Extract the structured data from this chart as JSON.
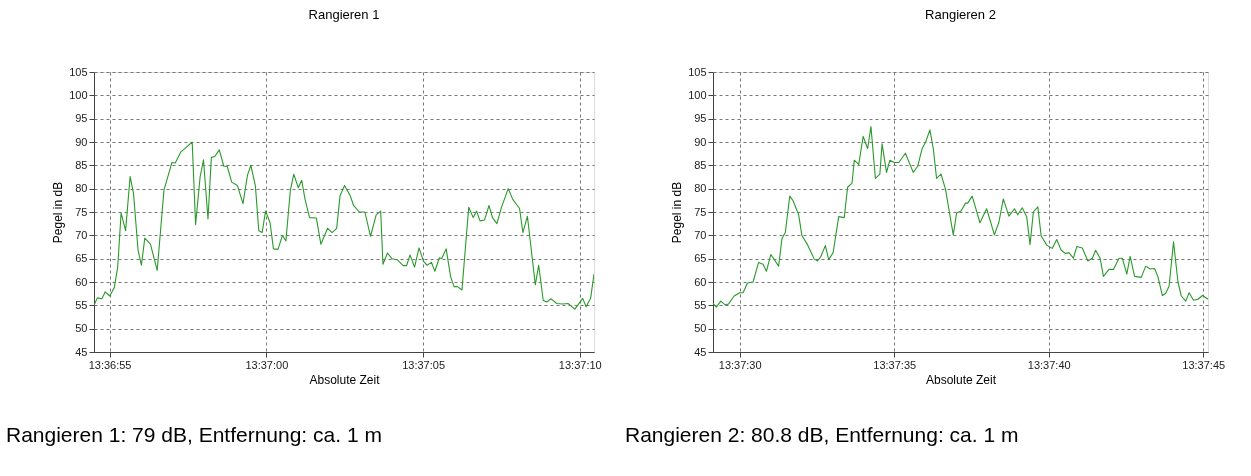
{
  "chart_data": [
    {
      "type": "line",
      "title": "Rangieren 1",
      "xlabel": "Absolute Zeit",
      "ylabel": "Pegel in dB",
      "annotations": [
        "Rangieren 1: 79 dB, Entfernung: ca. 1 m"
      ],
      "xlim": [
        13.61514,
        13.61957
      ],
      "ylim": [
        45,
        105
      ],
      "xticks": [
        {
          "value": 13.615278,
          "label": "13:36:55"
        },
        {
          "value": 13.616667,
          "label": "13:37:00"
        },
        {
          "value": 13.618056,
          "label": "13:37:05"
        },
        {
          "value": 13.619444,
          "label": "13:37:10"
        }
      ],
      "yticks": [
        45,
        50,
        55,
        60,
        65,
        70,
        75,
        80,
        85,
        90,
        95,
        100,
        105
      ],
      "grid": true,
      "marker": "none",
      "line_style": "solid",
      "series": [
        {
          "color": "#2a9a2a",
          "x": [
            13.61514,
            13.61517,
            13.61521,
            13.61524,
            13.61528,
            13.61532,
            13.61535,
            13.61538,
            13.61542,
            13.61546,
            13.61549,
            13.61553,
            13.61556,
            13.61559,
            13.61564,
            13.6157,
            13.61576,
            13.61583,
            13.61586,
            13.61591,
            13.61596,
            13.61601,
            13.61604,
            13.61608,
            13.61611,
            13.61615,
            13.61618,
            13.61621,
            13.61625,
            13.61629,
            13.61632,
            13.61636,
            13.61641,
            13.61646,
            13.6165,
            13.61653,
            13.61657,
            13.6166,
            13.61663,
            13.61666,
            13.6167,
            13.61673,
            13.61677,
            13.61681,
            13.61684,
            13.61688,
            13.61691,
            13.61695,
            13.61698,
            13.61701,
            13.61705,
            13.61711,
            13.61715,
            13.61721,
            13.61725,
            13.61729,
            13.61732,
            13.61736,
            13.61741,
            13.61744,
            13.61749,
            13.61754,
            13.61759,
            13.61764,
            13.61768,
            13.6177,
            13.61774,
            13.61778,
            13.61783,
            13.61788,
            13.61791,
            13.61794,
            13.61798,
            13.61802,
            13.61806,
            13.61809,
            13.61813,
            13.61816,
            13.6182,
            13.61822,
            13.61826,
            13.6183,
            13.61833,
            13.61836,
            13.6184,
            13.61846,
            13.6185,
            13.61853,
            13.61856,
            13.6186,
            13.61864,
            13.61867,
            13.61871,
            13.61875,
            13.61881,
            13.61885,
            13.61891,
            13.61894,
            13.61898,
            13.61905,
            13.61908,
            13.61912,
            13.61915,
            13.61919,
            13.61924,
            13.61929,
            13.61934,
            13.6194,
            13.61947,
            13.6195,
            13.61954,
            13.61957
          ],
          "values": [
            55.0,
            56.6,
            56.4,
            57.9,
            57.0,
            58.8,
            63.2,
            74.8,
            71.0,
            82.6,
            79.0,
            66.9,
            63.6,
            69.4,
            68.1,
            62.5,
            79.7,
            85.6,
            85.5,
            87.9,
            88.9,
            90.0,
            72.3,
            82.5,
            86.2,
            73.5,
            86.7,
            86.9,
            88.3,
            84.8,
            84.8,
            81.4,
            80.7,
            76.8,
            82.9,
            85.0,
            80.6,
            71.0,
            70.6,
            75.2,
            72.7,
            67.1,
            67.0,
            70.0,
            68.8,
            79.7,
            83.1,
            80.2,
            81.8,
            77.7,
            73.8,
            73.7,
            68.1,
            71.5,
            70.6,
            71.5,
            78.5,
            80.7,
            78.5,
            76.4,
            75.0,
            75.0,
            69.8,
            74.4,
            75.2,
            63.8,
            66.2,
            65.0,
            64.7,
            63.5,
            63.5,
            65.8,
            63.2,
            67.3,
            64.4,
            63.6,
            64.2,
            62.3,
            65.2,
            65.0,
            67.1,
            61.1,
            59.0,
            59.0,
            58.3,
            76.0,
            73.8,
            75.2,
            73.1,
            73.3,
            76.4,
            73.8,
            72.5,
            76.0,
            80.0,
            77.7,
            75.8,
            70.6,
            74.1,
            59.4,
            63.6,
            56.1,
            55.7,
            56.4,
            55.4,
            55.3,
            55.4,
            54.2,
            56.5,
            54.7,
            56.5,
            61.7
          ]
        }
      ]
    },
    {
      "type": "line",
      "title": "Rangieren 2",
      "xlabel": "Absolute Zeit",
      "ylabel": "Pegel in dB",
      "annotations": [
        "Rangieren 2: 80.8 dB, Entfernung: ca. 1 m"
      ],
      "xlim": [
        13.62476,
        13.62921
      ],
      "ylim": [
        45,
        105
      ],
      "xticks": [
        {
          "value": 13.625,
          "label": "13:37:30"
        },
        {
          "value": 13.626389,
          "label": "13:37:35"
        },
        {
          "value": 13.627778,
          "label": "13:37:40"
        },
        {
          "value": 13.629167,
          "label": "13:37:45"
        }
      ],
      "yticks": [
        45,
        50,
        55,
        60,
        65,
        70,
        75,
        80,
        85,
        90,
        95,
        100,
        105
      ],
      "grid": true,
      "marker": "none",
      "line_style": "solid",
      "series": [
        {
          "color": "#2a9a2a",
          "x": [
            13.62476,
            13.62479,
            13.62483,
            13.62487,
            13.6249,
            13.62495,
            13.625,
            13.62503,
            13.62507,
            13.62512,
            13.62517,
            13.62521,
            13.62524,
            13.62528,
            13.62535,
            13.62538,
            13.62541,
            13.62545,
            13.62548,
            13.62553,
            13.62556,
            13.62561,
            13.62567,
            13.6257,
            13.62573,
            13.62577,
            13.6258,
            13.62584,
            13.62589,
            13.62594,
            13.62597,
            13.62601,
            13.62603,
            13.62607,
            13.62611,
            13.62615,
            13.62618,
            13.62622,
            13.62626,
            13.62628,
            13.62632,
            13.62635,
            13.62639,
            13.62643,
            13.62649,
            13.62656,
            13.6266,
            13.62664,
            13.62667,
            13.62671,
            13.62674,
            13.62677,
            13.62681,
            13.62685,
            13.62688,
            13.62692,
            13.62695,
            13.62699,
            13.62703,
            13.62705,
            13.62709,
            13.62716,
            13.62722,
            13.62729,
            13.62733,
            13.62737,
            13.62742,
            13.62747,
            13.6275,
            13.62754,
            13.62758,
            13.62761,
            13.62764,
            13.62768,
            13.62771,
            13.62776,
            13.62781,
            13.62785,
            13.62789,
            13.62793,
            13.62796,
            13.628,
            13.62803,
            13.62808,
            13.62813,
            13.62817,
            13.6282,
            13.62824,
            13.62827,
            13.62832,
            13.62836,
            13.62841,
            13.62844,
            13.62848,
            13.62851,
            13.62855,
            13.62861,
            13.62865,
            13.62869,
            13.62873,
            13.62876,
            13.6288,
            13.62883,
            13.62886,
            13.6289,
            13.62894,
            13.62897,
            13.62901,
            13.62904,
            13.62908,
            13.62912,
            13.62916,
            13.62921
          ],
          "values": [
            55.4,
            54.6,
            55.9,
            55.1,
            55.3,
            57.0,
            57.7,
            57.7,
            59.8,
            60.0,
            64.2,
            63.8,
            62.3,
            65.9,
            63.4,
            69.3,
            70.6,
            78.4,
            77.4,
            74.4,
            69.9,
            68.0,
            64.9,
            64.5,
            65.5,
            67.8,
            64.8,
            66.3,
            74.0,
            73.8,
            80.3,
            81.2,
            86.1,
            85.2,
            91.2,
            88.6,
            93.3,
            82.2,
            83.1,
            89.6,
            83.5,
            86.1,
            85.6,
            85.6,
            87.6,
            83.5,
            84.8,
            88.6,
            89.9,
            92.6,
            88.6,
            82.2,
            83.1,
            79.9,
            75.7,
            70.1,
            74.8,
            75.2,
            76.9,
            76.9,
            78.4,
            72.7,
            75.7,
            70.1,
            72.8,
            77.8,
            74.1,
            75.7,
            74.4,
            75.9,
            74.0,
            68.0,
            75.0,
            76.1,
            69.9,
            67.9,
            67.2,
            69.1,
            66.8,
            66.1,
            66.3,
            65.1,
            67.6,
            67.3,
            64.5,
            65.1,
            66.8,
            65.1,
            61.2,
            62.7,
            62.7,
            65.1,
            65.1,
            61.7,
            65.5,
            61.2,
            61.0,
            63.4,
            62.8,
            62.9,
            61.1,
            57.1,
            57.6,
            59.1,
            68.6,
            60.0,
            57.0,
            55.9,
            57.7,
            56.1,
            56.3,
            57.1,
            56.3
          ]
        }
      ]
    }
  ]
}
